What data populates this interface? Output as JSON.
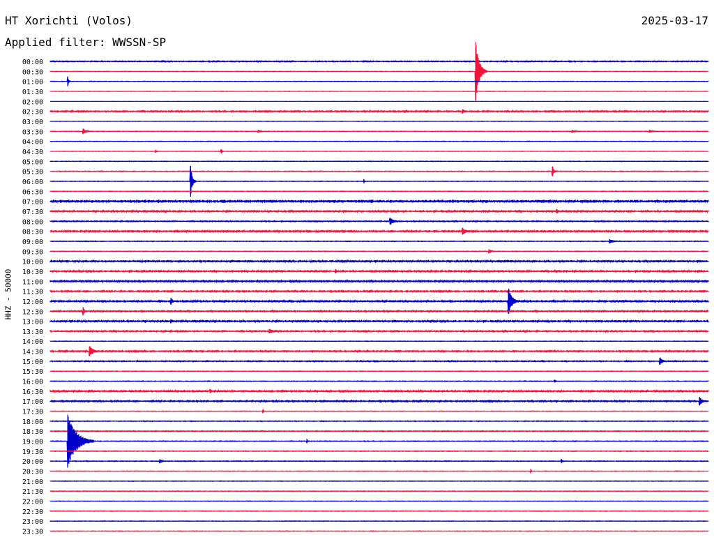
{
  "header": {
    "station": "HT Xorichti (Volos)",
    "date": "2025-03-17",
    "filter": "Applied filter: WWSSN-SP"
  },
  "chart_data": {
    "type": "line",
    "title": "HT Xorichti (Volos)",
    "subtitle": "Applied filter: WWSSN-SP",
    "ylabel": "HHZ - 50000",
    "xlabel": "",
    "grid": false,
    "colors": {
      "even_rows": "#0000c8",
      "odd_rows": "#f0143c"
    },
    "x_range": [
      0,
      30
    ],
    "row_labels": [
      "00:00",
      "00:30",
      "01:00",
      "01:30",
      "02:00",
      "02:30",
      "03:00",
      "03:30",
      "04:00",
      "04:30",
      "05:00",
      "05:30",
      "06:00",
      "06:30",
      "07:00",
      "07:30",
      "08:00",
      "08:30",
      "09:00",
      "09:30",
      "10:00",
      "10:30",
      "11:00",
      "11:30",
      "12:00",
      "12:30",
      "13:00",
      "13:30",
      "14:00",
      "14:30",
      "15:00",
      "15:30",
      "16:00",
      "16:30",
      "17:00",
      "17:30",
      "18:00",
      "18:30",
      "19:00",
      "19:30",
      "20:00",
      "20:30",
      "21:00",
      "21:30",
      "22:00",
      "22:30",
      "23:00",
      "23:30"
    ],
    "noise_level": [
      0.6,
      0.2,
      0.3,
      0.2,
      0.1,
      0.8,
      0.2,
      0.3,
      0.3,
      0.2,
      0.3,
      0.4,
      0.3,
      0.3,
      1.5,
      1.0,
      0.6,
      1.0,
      0.4,
      0.3,
      1.0,
      1.0,
      1.0,
      0.8,
      1.0,
      0.8,
      1.0,
      0.8,
      0.3,
      0.8,
      0.6,
      0.3,
      0.4,
      1.0,
      0.8,
      0.3,
      0.4,
      0.5,
      0.4,
      0.4,
      0.4,
      0.3,
      0.3,
      0.3,
      0.3,
      0.3,
      0.3,
      0.3
    ],
    "events": [
      {
        "row": 1,
        "minute": 19.4,
        "amplitude": 42,
        "duration": 0.5
      },
      {
        "row": 2,
        "minute": 0.8,
        "amplitude": 7,
        "duration": 0.15
      },
      {
        "row": 5,
        "minute": 18.8,
        "amplitude": 3,
        "duration": 0.4
      },
      {
        "row": 7,
        "minute": 1.5,
        "amplitude": 4,
        "duration": 0.4
      },
      {
        "row": 7,
        "minute": 9.5,
        "amplitude": 2,
        "duration": 0.3
      },
      {
        "row": 7,
        "minute": 23.8,
        "amplitude": 2,
        "duration": 0.5
      },
      {
        "row": 7,
        "minute": 27.3,
        "amplitude": 2,
        "duration": 0.6
      },
      {
        "row": 9,
        "minute": 4.8,
        "amplitude": 2,
        "duration": 0.2
      },
      {
        "row": 9,
        "minute": 7.8,
        "amplitude": 3,
        "duration": 0.15
      },
      {
        "row": 11,
        "minute": 22.9,
        "amplitude": 7,
        "duration": 0.2
      },
      {
        "row": 12,
        "minute": 6.4,
        "amplitude": 22,
        "duration": 0.25
      },
      {
        "row": 12,
        "minute": 14.3,
        "amplitude": 3,
        "duration": 0.1
      },
      {
        "row": 15,
        "minute": 23.1,
        "amplitude": 3,
        "duration": 0.3
      },
      {
        "row": 16,
        "minute": 15.5,
        "amplitude": 5,
        "duration": 0.5
      },
      {
        "row": 17,
        "minute": 18.8,
        "amplitude": 5,
        "duration": 0.5
      },
      {
        "row": 18,
        "minute": 25.5,
        "amplitude": 3,
        "duration": 0.5
      },
      {
        "row": 19,
        "minute": 20.0,
        "amplitude": 3,
        "duration": 0.3
      },
      {
        "row": 21,
        "minute": 13.0,
        "amplitude": 3,
        "duration": 0.3
      },
      {
        "row": 24,
        "minute": 20.9,
        "amplitude": 18,
        "duration": 0.5
      },
      {
        "row": 24,
        "minute": 5.5,
        "amplitude": 5,
        "duration": 0.3
      },
      {
        "row": 25,
        "minute": 1.5,
        "amplitude": 6,
        "duration": 0.2
      },
      {
        "row": 26,
        "minute": 5.5,
        "amplitude": 3,
        "duration": 0.2
      },
      {
        "row": 27,
        "minute": 10.0,
        "amplitude": 3,
        "duration": 0.6
      },
      {
        "row": 29,
        "minute": 1.8,
        "amplitude": 7,
        "duration": 0.6
      },
      {
        "row": 30,
        "minute": 27.8,
        "amplitude": 5,
        "duration": 0.4
      },
      {
        "row": 32,
        "minute": 23.0,
        "amplitude": 2,
        "duration": 0.2
      },
      {
        "row": 33,
        "minute": 7.3,
        "amplitude": 3,
        "duration": 0.2
      },
      {
        "row": 34,
        "minute": 29.6,
        "amplitude": 6,
        "duration": 0.4
      },
      {
        "row": 35,
        "minute": 9.7,
        "amplitude": 3,
        "duration": 0.1
      },
      {
        "row": 38,
        "minute": 0.8,
        "amplitude": 38,
        "duration": 1.2
      },
      {
        "row": 38,
        "minute": 11.7,
        "amplitude": 3,
        "duration": 0.1
      },
      {
        "row": 40,
        "minute": 5.0,
        "amplitude": 3,
        "duration": 0.3
      },
      {
        "row": 40,
        "minute": 23.3,
        "amplitude": 3,
        "duration": 0.2
      },
      {
        "row": 41,
        "minute": 21.9,
        "amplitude": 3,
        "duration": 0.1
      }
    ]
  }
}
